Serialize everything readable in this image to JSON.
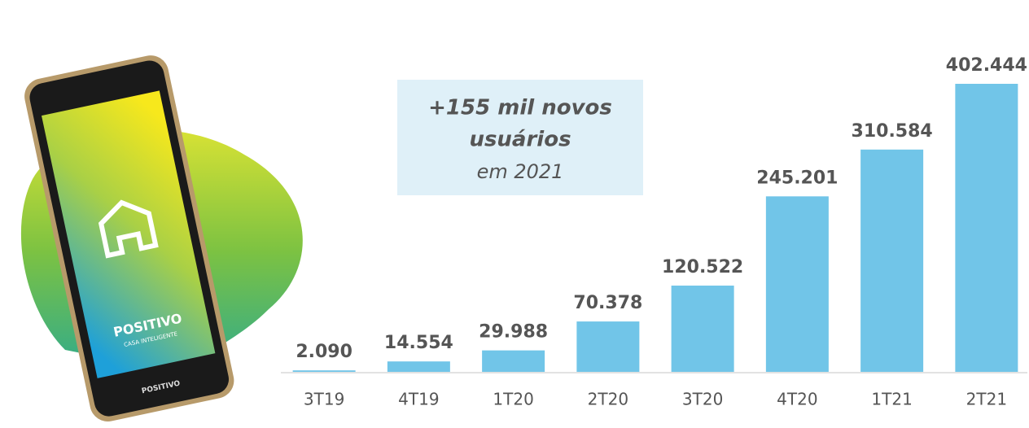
{
  "chart_data": {
    "type": "bar",
    "categories": [
      "3T19",
      "4T19",
      "1T20",
      "2T20",
      "3T20",
      "4T20",
      "1T21",
      "2T21"
    ],
    "values": [
      2090,
      14554,
      29988,
      70378,
      120522,
      245201,
      310584,
      402444
    ],
    "value_labels": [
      "2.090",
      "14.554",
      "29.988",
      "70.378",
      "120.522",
      "245.201",
      "310.584",
      "402.444"
    ],
    "color": "#71c5e8",
    "annotation": {
      "lines": [
        "+155 mil novos",
        "usuários",
        "em 2021"
      ]
    },
    "phone": {
      "brand": "POSITIVO",
      "tagline": "CASA INTELIGENTE",
      "footer": "POSITIVO"
    }
  }
}
